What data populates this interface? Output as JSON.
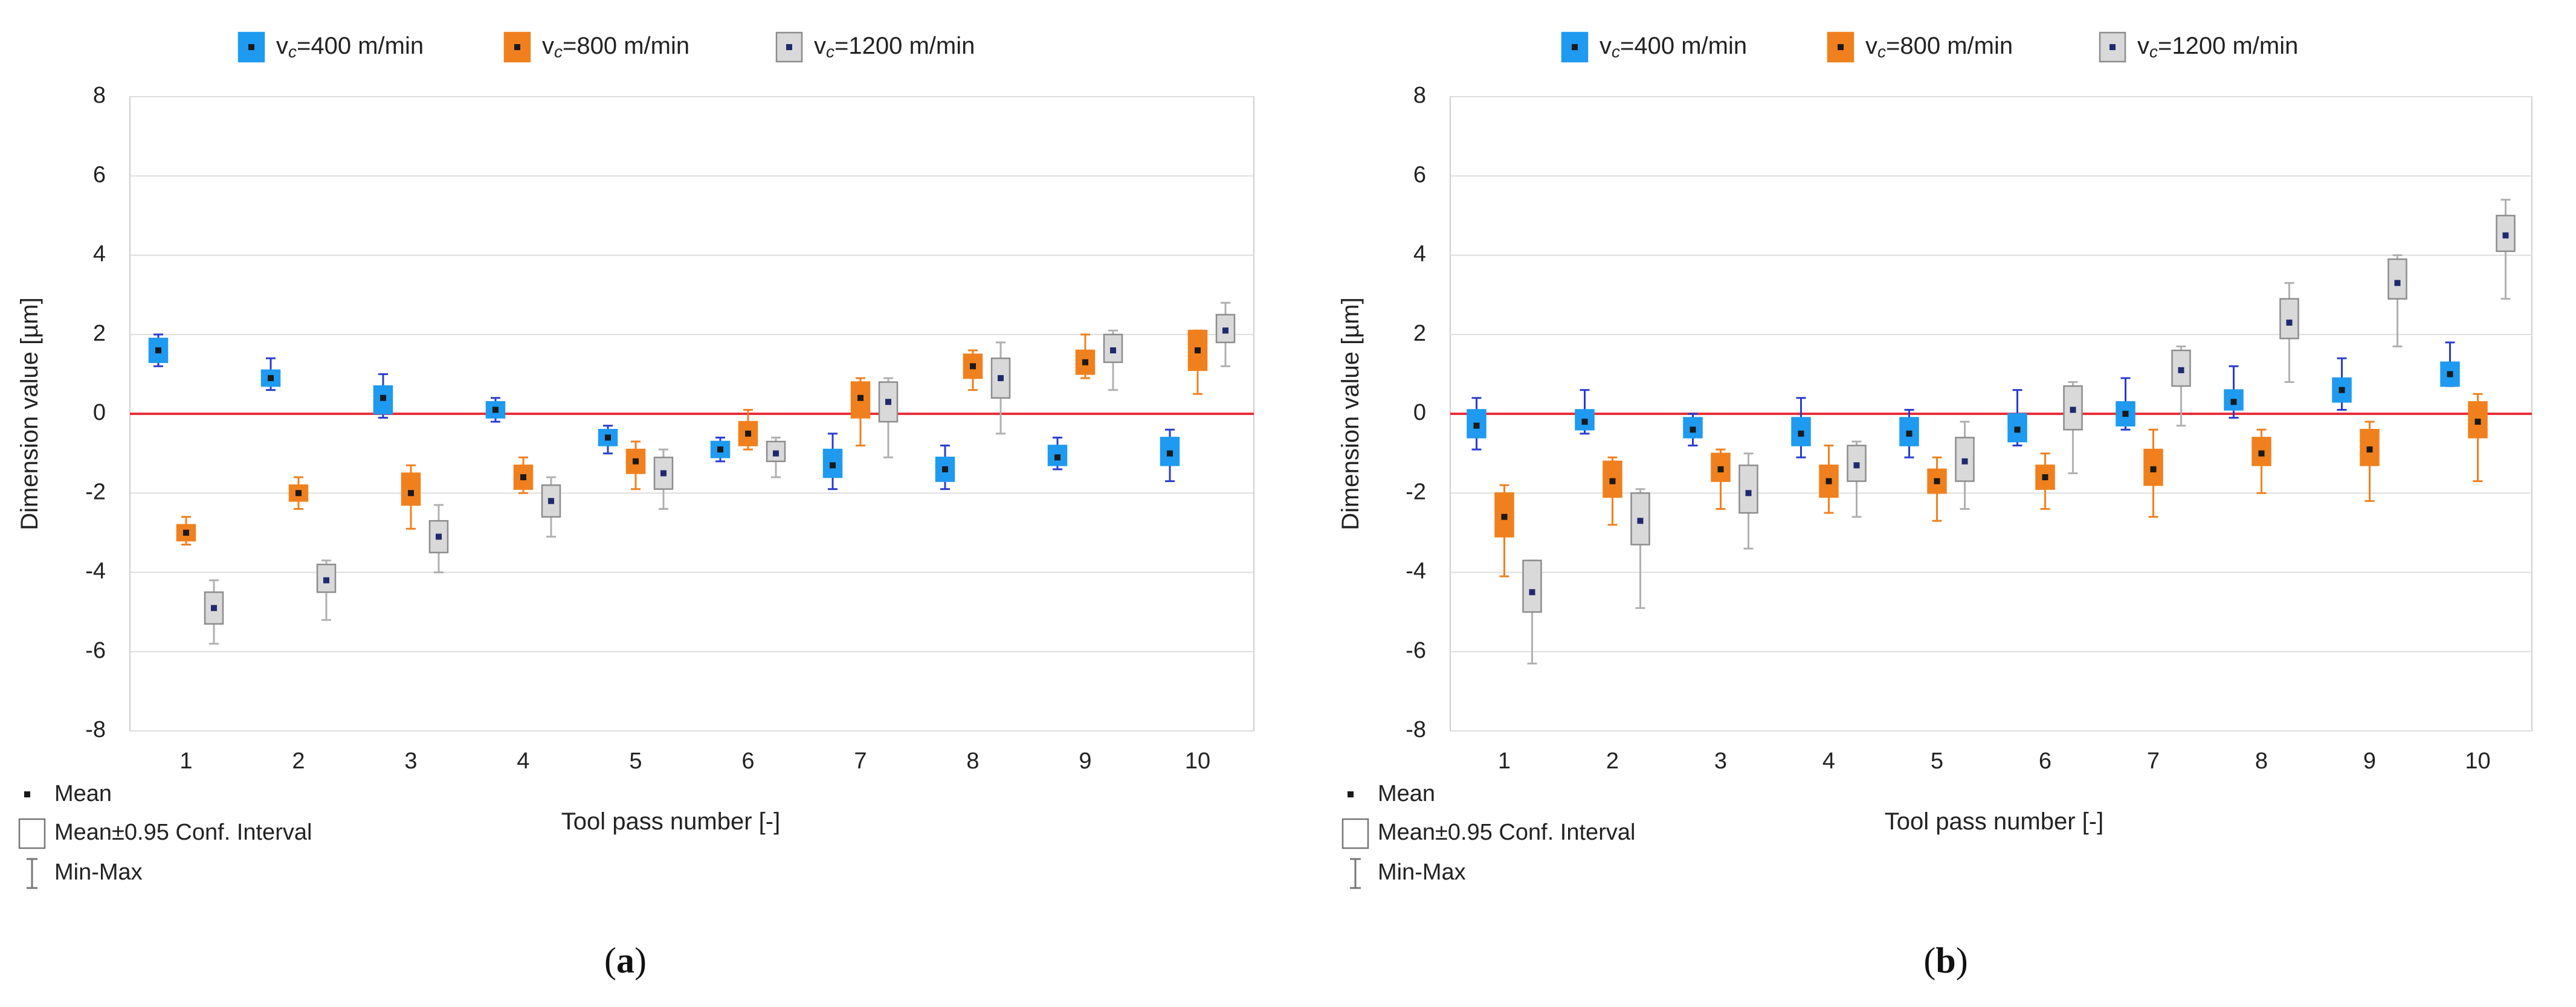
{
  "figure": {
    "panel_labels": [
      "(",
      "a",
      ")",
      "(",
      "b",
      ")"
    ]
  },
  "colors": {
    "v400_fill": "#1e9af0",
    "v400_whisker": "#2a3ccf",
    "v800_fill": "#f0801e",
    "v800_whisker": "#f0801e",
    "v1200_fill": "#d9d9d9",
    "v1200_whisker": "#b0b0b0",
    "mean_marker": "#1a1a1a",
    "mean_marker_grey": "#1f2a6e",
    "zero_line": "#e8303a",
    "grid": "#dddddd"
  },
  "chart_data": [
    {
      "type": "boxplot",
      "panel": "a",
      "title": "",
      "xlabel": "Tool pass number [-]",
      "ylabel": "Dimension value [µm]",
      "ylim": [
        -8,
        8
      ],
      "yticks": [
        "8",
        "6",
        "4",
        "2",
        "0",
        "-2",
        "-4",
        "-6",
        "-8"
      ],
      "categories": [
        "1",
        "2",
        "3",
        "4",
        "5",
        "6",
        "7",
        "8",
        "9",
        "10"
      ],
      "reference_line": 0,
      "legend": {
        "series": [
          {
            "sym": "v",
            "sub": "c",
            "text": "=400 m/min"
          },
          {
            "sym": "v",
            "sub": "c",
            "text": "=800  m/min"
          },
          {
            "sym": "v",
            "sub": "c",
            "text": "=1200  m/min"
          }
        ],
        "stat_items": [
          "Mean",
          "Mean±0.95 Conf. Interval",
          "Min-Max"
        ]
      },
      "series": [
        {
          "name": "vc=400 m/min",
          "mean": [
            1.6,
            0.9,
            0.4,
            0.1,
            -0.6,
            -0.9,
            -1.3,
            -1.4,
            -1.1,
            -1.0
          ],
          "ci_low": [
            1.3,
            0.7,
            0.0,
            -0.1,
            -0.8,
            -1.1,
            -1.6,
            -1.7,
            -1.3,
            -1.3
          ],
          "ci_high": [
            1.9,
            1.1,
            0.7,
            0.3,
            -0.4,
            -0.7,
            -0.9,
            -1.1,
            -0.8,
            -0.6
          ],
          "min": [
            1.2,
            0.6,
            -0.1,
            -0.2,
            -1.0,
            -1.2,
            -1.9,
            -1.9,
            -1.4,
            -1.7
          ],
          "max": [
            2.0,
            1.4,
            1.0,
            0.4,
            -0.3,
            -0.6,
            -0.5,
            -0.8,
            -0.6,
            -0.4
          ]
        },
        {
          "name": "vc=800 m/min",
          "mean": [
            -3.0,
            -2.0,
            -2.0,
            -1.6,
            -1.2,
            -0.5,
            0.4,
            1.2,
            1.3,
            1.6
          ],
          "ci_low": [
            -3.2,
            -2.2,
            -2.3,
            -1.9,
            -1.5,
            -0.8,
            -0.1,
            0.9,
            1.0,
            1.1
          ],
          "ci_high": [
            -2.8,
            -1.8,
            -1.5,
            -1.3,
            -0.9,
            -0.2,
            0.8,
            1.5,
            1.6,
            2.1
          ],
          "min": [
            -3.3,
            -2.4,
            -2.9,
            -2.0,
            -1.9,
            -0.9,
            -0.8,
            0.6,
            0.9,
            0.5
          ],
          "max": [
            -2.6,
            -1.6,
            -1.3,
            -1.1,
            -0.7,
            0.1,
            0.9,
            1.6,
            2.0,
            2.1
          ]
        },
        {
          "name": "vc=1200 m/min",
          "mean": [
            -4.9,
            -4.2,
            -3.1,
            -2.2,
            -1.5,
            -1.0,
            0.3,
            0.9,
            1.6,
            2.1
          ],
          "ci_low": [
            -5.3,
            -4.5,
            -3.5,
            -2.6,
            -1.9,
            -1.2,
            -0.2,
            0.4,
            1.3,
            1.8
          ],
          "ci_high": [
            -4.5,
            -3.8,
            -2.7,
            -1.8,
            -1.1,
            -0.7,
            0.8,
            1.4,
            2.0,
            2.5
          ],
          "min": [
            -5.8,
            -5.2,
            -4.0,
            -3.1,
            -2.4,
            -1.6,
            -1.1,
            -0.5,
            0.6,
            1.2
          ],
          "max": [
            -4.2,
            -3.7,
            -2.3,
            -1.6,
            -0.9,
            -0.6,
            0.9,
            1.8,
            2.1,
            2.8
          ]
        }
      ]
    },
    {
      "type": "boxplot",
      "panel": "b",
      "title": "",
      "xlabel": "Tool pass number [-]",
      "ylabel": "Dimension value [µm]",
      "ylim": [
        -8,
        8
      ],
      "yticks": [
        "8",
        "6",
        "4",
        "2",
        "0",
        "-2",
        "-4",
        "-6",
        "-8"
      ],
      "categories": [
        "1",
        "2",
        "3",
        "4",
        "5",
        "6",
        "7",
        "8",
        "9",
        "10"
      ],
      "reference_line": 0,
      "legend": {
        "series": [
          {
            "sym": "v",
            "sub": "c",
            "text": "=400 m/min"
          },
          {
            "sym": "v",
            "sub": "c",
            "text": "=800  m/min"
          },
          {
            "sym": "v",
            "sub": "c",
            "text": "=1200  m/min"
          }
        ],
        "stat_items": [
          "Mean",
          "Mean±0.95 Conf. Interval",
          "Min-Max"
        ]
      },
      "series": [
        {
          "name": "vc=400 m/min",
          "mean": [
            -0.3,
            -0.2,
            -0.4,
            -0.5,
            -0.5,
            -0.4,
            0.0,
            0.3,
            0.6,
            1.0
          ],
          "ci_low": [
            -0.6,
            -0.4,
            -0.6,
            -0.8,
            -0.8,
            -0.7,
            -0.3,
            0.1,
            0.3,
            0.7
          ],
          "ci_high": [
            0.1,
            0.1,
            -0.1,
            -0.1,
            -0.1,
            0.0,
            0.3,
            0.6,
            0.9,
            1.3
          ],
          "min": [
            -0.9,
            -0.5,
            -0.8,
            -1.1,
            -1.1,
            -0.8,
            -0.4,
            -0.1,
            0.1,
            0.7
          ],
          "max": [
            0.4,
            0.6,
            0.0,
            0.4,
            0.1,
            0.6,
            0.9,
            1.2,
            1.4,
            1.8
          ]
        },
        {
          "name": "vc=800 m/min",
          "mean": [
            -2.6,
            -1.7,
            -1.4,
            -1.7,
            -1.7,
            -1.6,
            -1.4,
            -1.0,
            -0.9,
            -0.2
          ],
          "ci_low": [
            -3.1,
            -2.1,
            -1.7,
            -2.1,
            -2.0,
            -1.9,
            -1.8,
            -1.3,
            -1.3,
            -0.6
          ],
          "ci_high": [
            -2.0,
            -1.2,
            -1.0,
            -1.3,
            -1.4,
            -1.3,
            -0.9,
            -0.6,
            -0.4,
            0.3
          ],
          "min": [
            -4.1,
            -2.8,
            -2.4,
            -2.5,
            -2.7,
            -2.4,
            -2.6,
            -2.0,
            -2.2,
            -1.7
          ],
          "max": [
            -1.8,
            -1.1,
            -0.9,
            -0.8,
            -1.1,
            -1.0,
            -0.4,
            -0.4,
            -0.2,
            0.5
          ]
        },
        {
          "name": "vc=1200 m/min",
          "mean": [
            -4.5,
            -2.7,
            -2.0,
            -1.3,
            -1.2,
            0.1,
            1.1,
            2.3,
            3.3,
            4.5
          ],
          "ci_low": [
            -5.0,
            -3.3,
            -2.5,
            -1.7,
            -1.7,
            -0.4,
            0.7,
            1.9,
            2.9,
            4.1
          ],
          "ci_high": [
            -3.7,
            -2.0,
            -1.3,
            -0.8,
            -0.6,
            0.7,
            1.6,
            2.9,
            3.9,
            5.0
          ],
          "min": [
            -6.3,
            -4.9,
            -3.4,
            -2.6,
            -2.4,
            -1.5,
            -0.3,
            0.8,
            1.7,
            2.9
          ],
          "max": [
            -3.7,
            -1.9,
            -1.0,
            -0.7,
            -0.2,
            0.8,
            1.7,
            3.3,
            4.0,
            5.4
          ]
        }
      ]
    }
  ]
}
